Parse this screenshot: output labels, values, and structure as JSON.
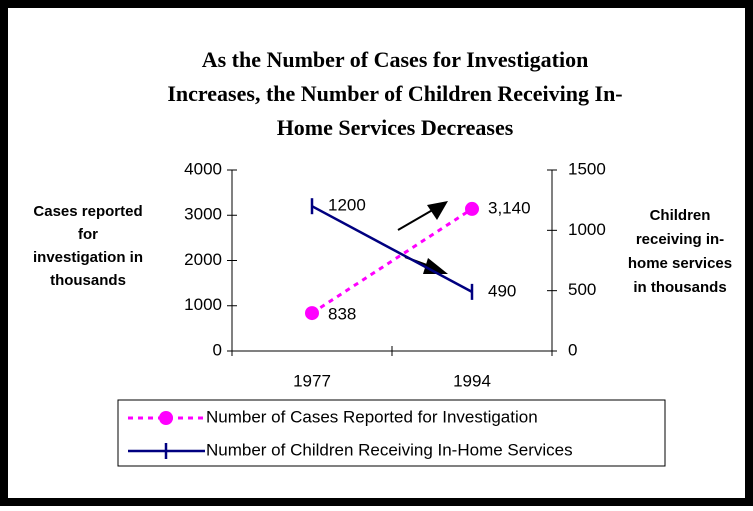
{
  "chart_data": {
    "type": "line",
    "title": [
      "As the Number of Cases for Investigation",
      "Increases, the Number of Children Receiving In-",
      "Home Services Decreases"
    ],
    "ylabel": [
      "Cases reported",
      "for",
      "investigation in",
      "thousands"
    ],
    "y2label": [
      "Children",
      "receiving in-",
      "home services",
      "in thousands"
    ],
    "categories": [
      "1977",
      "1994"
    ],
    "series": [
      {
        "name": "Number of Cases Reported for Investigation",
        "color": "#ff00ff",
        "values": [
          838,
          3140
        ],
        "value_labels": [
          "838",
          "3,140"
        ],
        "axis": "y"
      },
      {
        "name": "Number of Children Receiving In-Home Services",
        "color": "#000080",
        "values": [
          1200,
          490
        ],
        "axis": "y2"
      }
    ],
    "ylim": [
      0,
      4000
    ],
    "yticks": [
      0,
      1000,
      2000,
      3000,
      4000
    ],
    "y2lim": [
      0,
      1500
    ],
    "y2ticks": [
      0,
      500,
      1000,
      1500
    ],
    "grid": false,
    "legend": "bottom"
  }
}
